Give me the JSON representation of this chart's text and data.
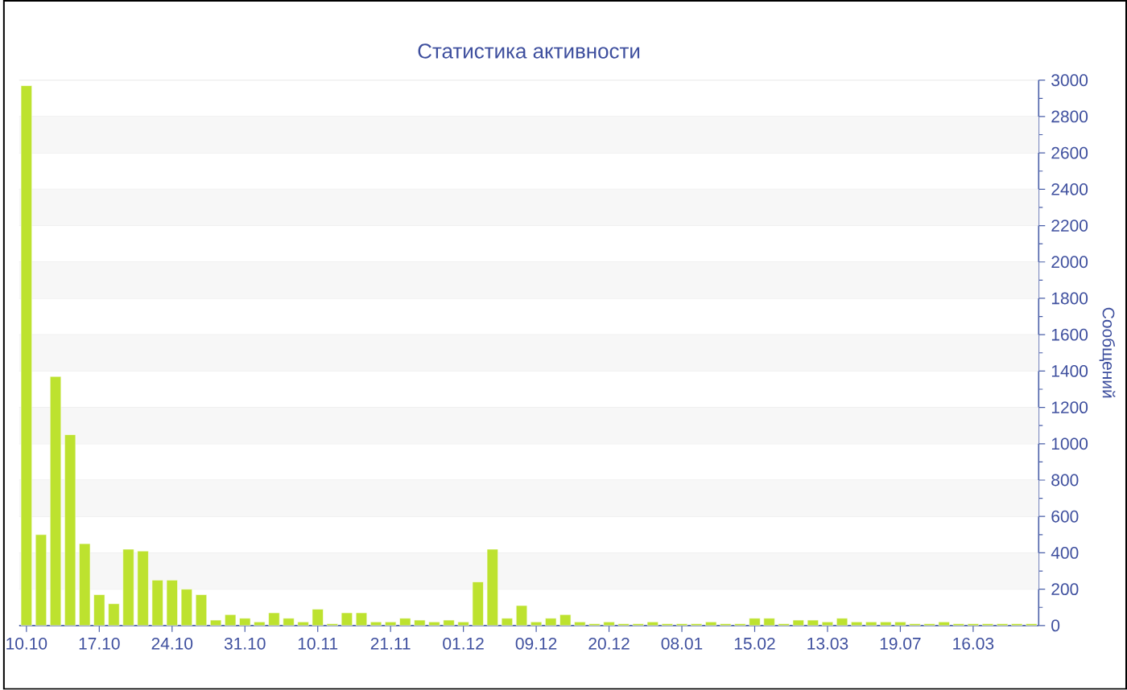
{
  "chart_data": {
    "type": "bar",
    "title": "Статистика активности",
    "ylabel": "Сообщений",
    "categories": [
      "10.10",
      null,
      null,
      null,
      null,
      "17.10",
      null,
      null,
      null,
      null,
      "24.10",
      null,
      null,
      null,
      null,
      "31.10",
      null,
      null,
      null,
      null,
      "10.11",
      null,
      null,
      null,
      null,
      "21.11",
      null,
      null,
      null,
      null,
      "01.12",
      null,
      null,
      null,
      null,
      "09.12",
      null,
      null,
      null,
      null,
      "20.12",
      null,
      null,
      null,
      null,
      "08.01",
      null,
      null,
      null,
      null,
      "15.02",
      null,
      null,
      null,
      null,
      "13.03",
      null,
      null,
      null,
      null,
      "19.07",
      null,
      null,
      null,
      null,
      "16.03",
      null,
      null,
      null,
      null
    ],
    "values": [
      2970,
      500,
      1370,
      1050,
      450,
      170,
      120,
      420,
      410,
      250,
      250,
      200,
      170,
      30,
      60,
      40,
      20,
      70,
      40,
      20,
      90,
      10,
      70,
      70,
      20,
      20,
      40,
      30,
      20,
      30,
      20,
      240,
      420,
      40,
      110,
      20,
      40,
      60,
      20,
      10,
      20,
      10,
      10,
      20,
      10,
      10,
      10,
      20,
      10,
      10,
      40,
      40,
      10,
      30,
      30,
      20,
      40,
      20,
      20,
      20,
      20,
      10,
      10,
      20,
      10,
      10,
      10,
      10,
      10,
      10
    ],
    "color": "#bde22f",
    "ylim": [
      0,
      3000
    ],
    "yticks": [
      0,
      200,
      400,
      600,
      800,
      1000,
      1200,
      1400,
      1600,
      1800,
      2000,
      2200,
      2400,
      2600,
      2800,
      3000
    ],
    "grid": "y"
  }
}
